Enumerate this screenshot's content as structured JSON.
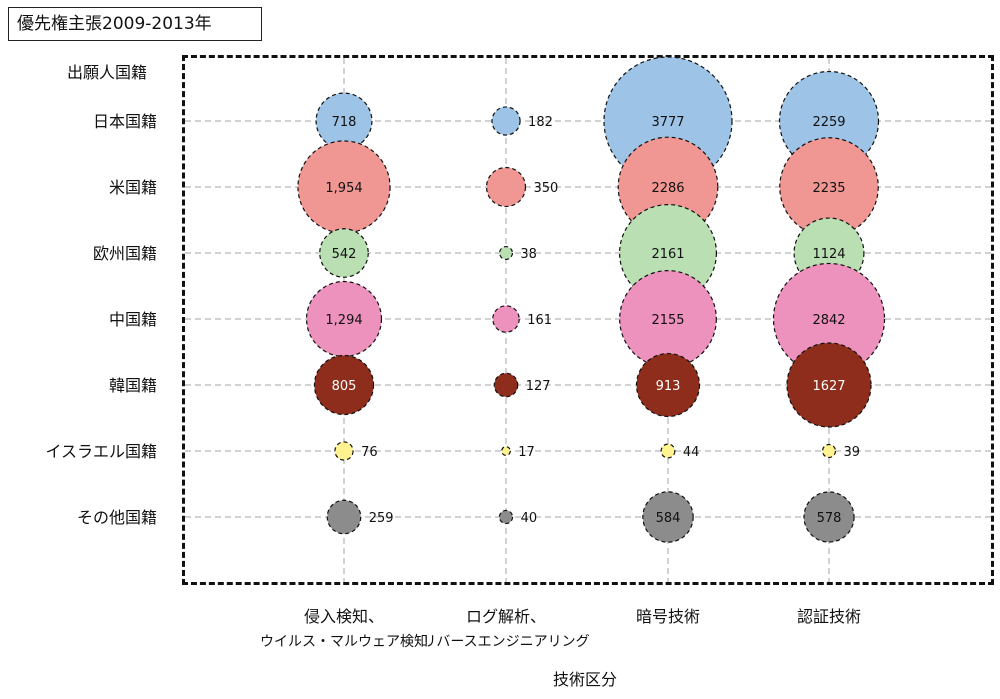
{
  "title": "優先権主張2009-2013年",
  "chart_data": {
    "type": "bubble",
    "y_header": "出願人国籍",
    "xlabel": "技術区分",
    "x_categories": [
      [
        "侵入検知、",
        "ウイルス・マルウェア検知"
      ],
      [
        "ログ解析、",
        "リバースエンジニアリング"
      ],
      [
        "暗号技術"
      ],
      [
        "認証技術"
      ]
    ],
    "y_categories": [
      "日本国籍",
      "米国籍",
      "欧州国籍",
      "中国籍",
      "韓国籍",
      "イスラエル国籍",
      "その他国籍"
    ],
    "colors": {
      "日本国籍": "#9dc3e6",
      "米国籍": "#f19793",
      "欧州国籍": "#b9dfb3",
      "中国籍": "#ed91bd",
      "韓国籍": "#8e2d1c",
      "イスラエル国籍": "#fff291",
      "その他国籍": "#8c8c8c"
    },
    "series": [
      {
        "name": "日本国籍",
        "values": [
          718,
          182,
          3777,
          2259
        ],
        "labels": [
          "718",
          "182",
          "3777",
          "2259"
        ]
      },
      {
        "name": "米国籍",
        "values": [
          1954,
          350,
          2286,
          2235
        ],
        "labels": [
          "1,954",
          "350",
          "2286",
          "2235"
        ]
      },
      {
        "name": "欧州国籍",
        "values": [
          542,
          38,
          2161,
          1124
        ],
        "labels": [
          "542",
          "38",
          "2161",
          "1124"
        ]
      },
      {
        "name": "中国籍",
        "values": [
          1294,
          161,
          2155,
          2842
        ],
        "labels": [
          "1,294",
          "161",
          "2155",
          "2842"
        ]
      },
      {
        "name": "韓国籍",
        "values": [
          805,
          127,
          913,
          1627
        ],
        "labels": [
          "805",
          "127",
          "913",
          "1627"
        ]
      },
      {
        "name": "イスラエル国籍",
        "values": [
          76,
          17,
          44,
          39
        ],
        "labels": [
          "76",
          "17",
          "44",
          "39"
        ]
      },
      {
        "name": "その他国籍",
        "values": [
          259,
          40,
          584,
          578
        ],
        "labels": [
          "259",
          "40",
          "584",
          "578"
        ]
      }
    ],
    "grid": true
  }
}
